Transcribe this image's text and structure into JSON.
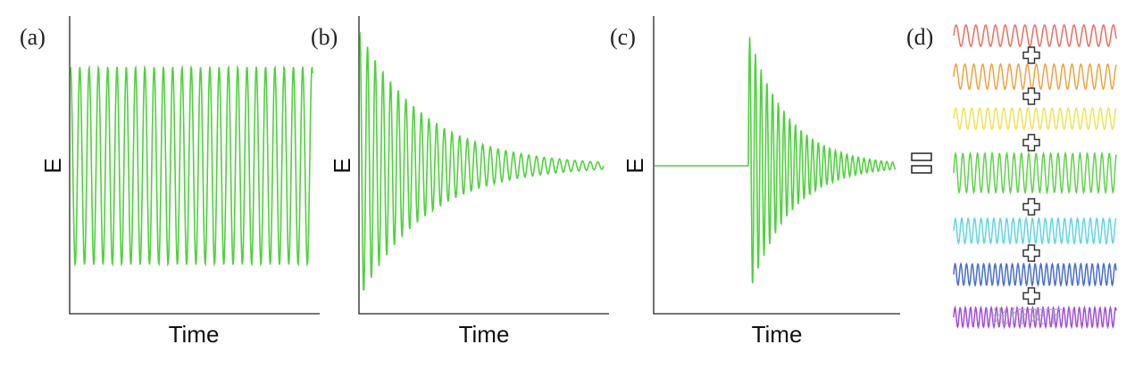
{
  "panels": [
    {
      "label": "(a)",
      "y_label": "E",
      "x_label": "Time"
    },
    {
      "label": "(b)",
      "y_label": "E",
      "x_label": "Time"
    },
    {
      "label": "(c)",
      "y_label": "E",
      "x_label": "Time"
    },
    {
      "label": "(d)"
    }
  ],
  "watermark": "光行天下"
}
